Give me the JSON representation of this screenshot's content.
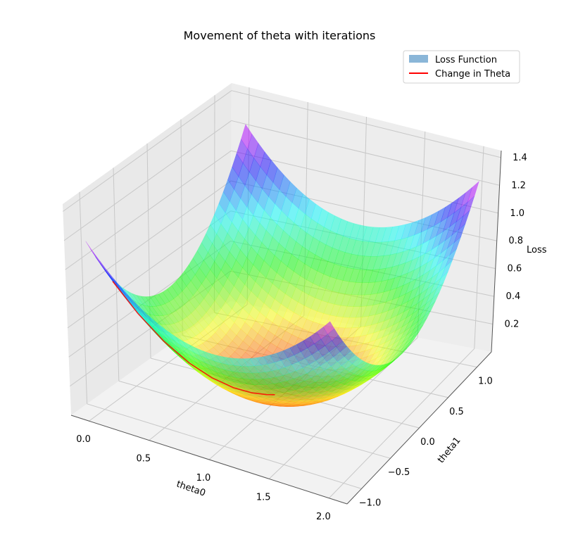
{
  "chart_data": {
    "type": "surface3d",
    "title": "Movement of theta with iterations",
    "xlabel": "theta0",
    "ylabel": "theta1",
    "zlabel": "Loss",
    "x_ticks": [
      "0.0",
      "0.5",
      "1.0",
      "1.5",
      "2.0"
    ],
    "y_ticks": [
      "−1.0",
      "−0.5",
      "0.0",
      "0.5",
      "1.0"
    ],
    "z_ticks": [
      "0.2",
      "0.4",
      "0.6",
      "0.8",
      "1.0",
      "1.2",
      "1.4"
    ],
    "xlim": [
      -0.15,
      2.15
    ],
    "ylim": [
      -1.25,
      1.25
    ],
    "zlim": [
      0.0,
      1.45
    ],
    "grid": true,
    "legend_position": "top-right",
    "series": [
      {
        "name": "Loss Function",
        "kind": "surface",
        "colormap": "gist_rainbow",
        "alpha": 0.5,
        "legend_color": "#8ab6d8",
        "x_range": [
          0,
          2
        ],
        "y_range": [
          -1.2,
          1.2
        ],
        "formula": "0.5*(theta0-1)^2 + 0.5*theta1^2"
      },
      {
        "name": "Change in Theta",
        "kind": "line",
        "color": "#ff0000",
        "x": [
          0.1,
          0.22,
          0.35,
          0.48,
          0.6,
          0.72,
          0.82,
          0.9,
          0.95
        ],
        "y": [
          -1.0,
          -0.85,
          -0.7,
          -0.55,
          -0.42,
          -0.3,
          -0.2,
          -0.12,
          -0.07
        ],
        "z": [
          0.905,
          0.665,
          0.456,
          0.286,
          0.168,
          0.084,
          0.036,
          0.0124,
          0.0037
        ]
      }
    ]
  }
}
